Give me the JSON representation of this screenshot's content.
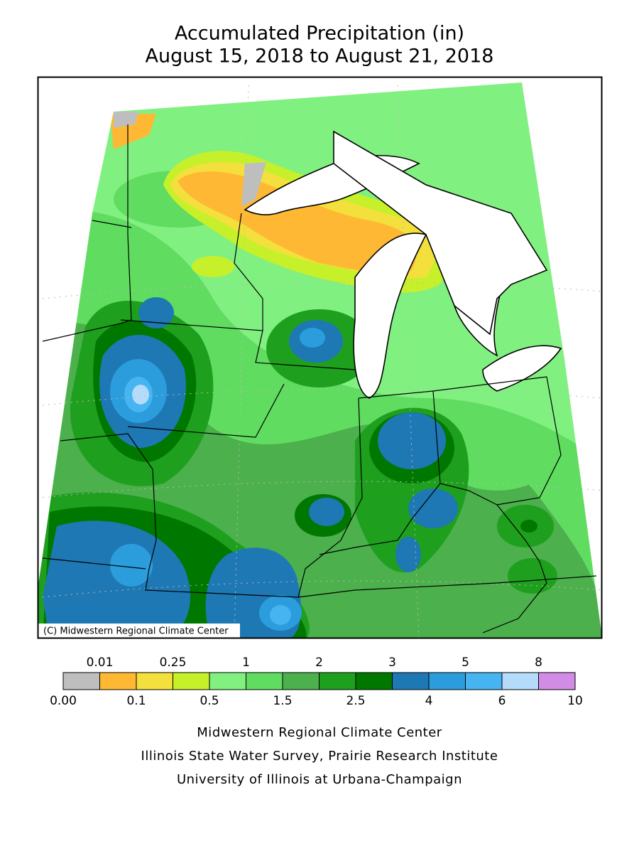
{
  "title": "Accumulated Precipitation (in)",
  "subtitle": "August 15, 2018 to August 21, 2018",
  "copyright": "(C) Midwestern Regional Climate Center",
  "legend": {
    "colors": [
      "#bebebe",
      "#ffb833",
      "#f3e03c",
      "#c6f02a",
      "#80f080",
      "#60dc60",
      "#4cb04c",
      "#1ea01e",
      "#007800",
      "#1e78b4",
      "#2c9ddc",
      "#46b4f0",
      "#b4dcfa",
      "#d28ce6"
    ],
    "upper_labels": [
      "0.01",
      "0.25",
      "1",
      "2",
      "3",
      "5",
      "8"
    ],
    "lower_labels": [
      "0.00",
      "0.1",
      "0.5",
      "1.5",
      "2.5",
      "4",
      "6",
      "10"
    ]
  },
  "credits": [
    "Midwestern Regional Climate Center",
    "Illinois State Water Survey, Prairie Research Institute",
    "University of Illinois at Urbana-Champaign"
  ]
}
